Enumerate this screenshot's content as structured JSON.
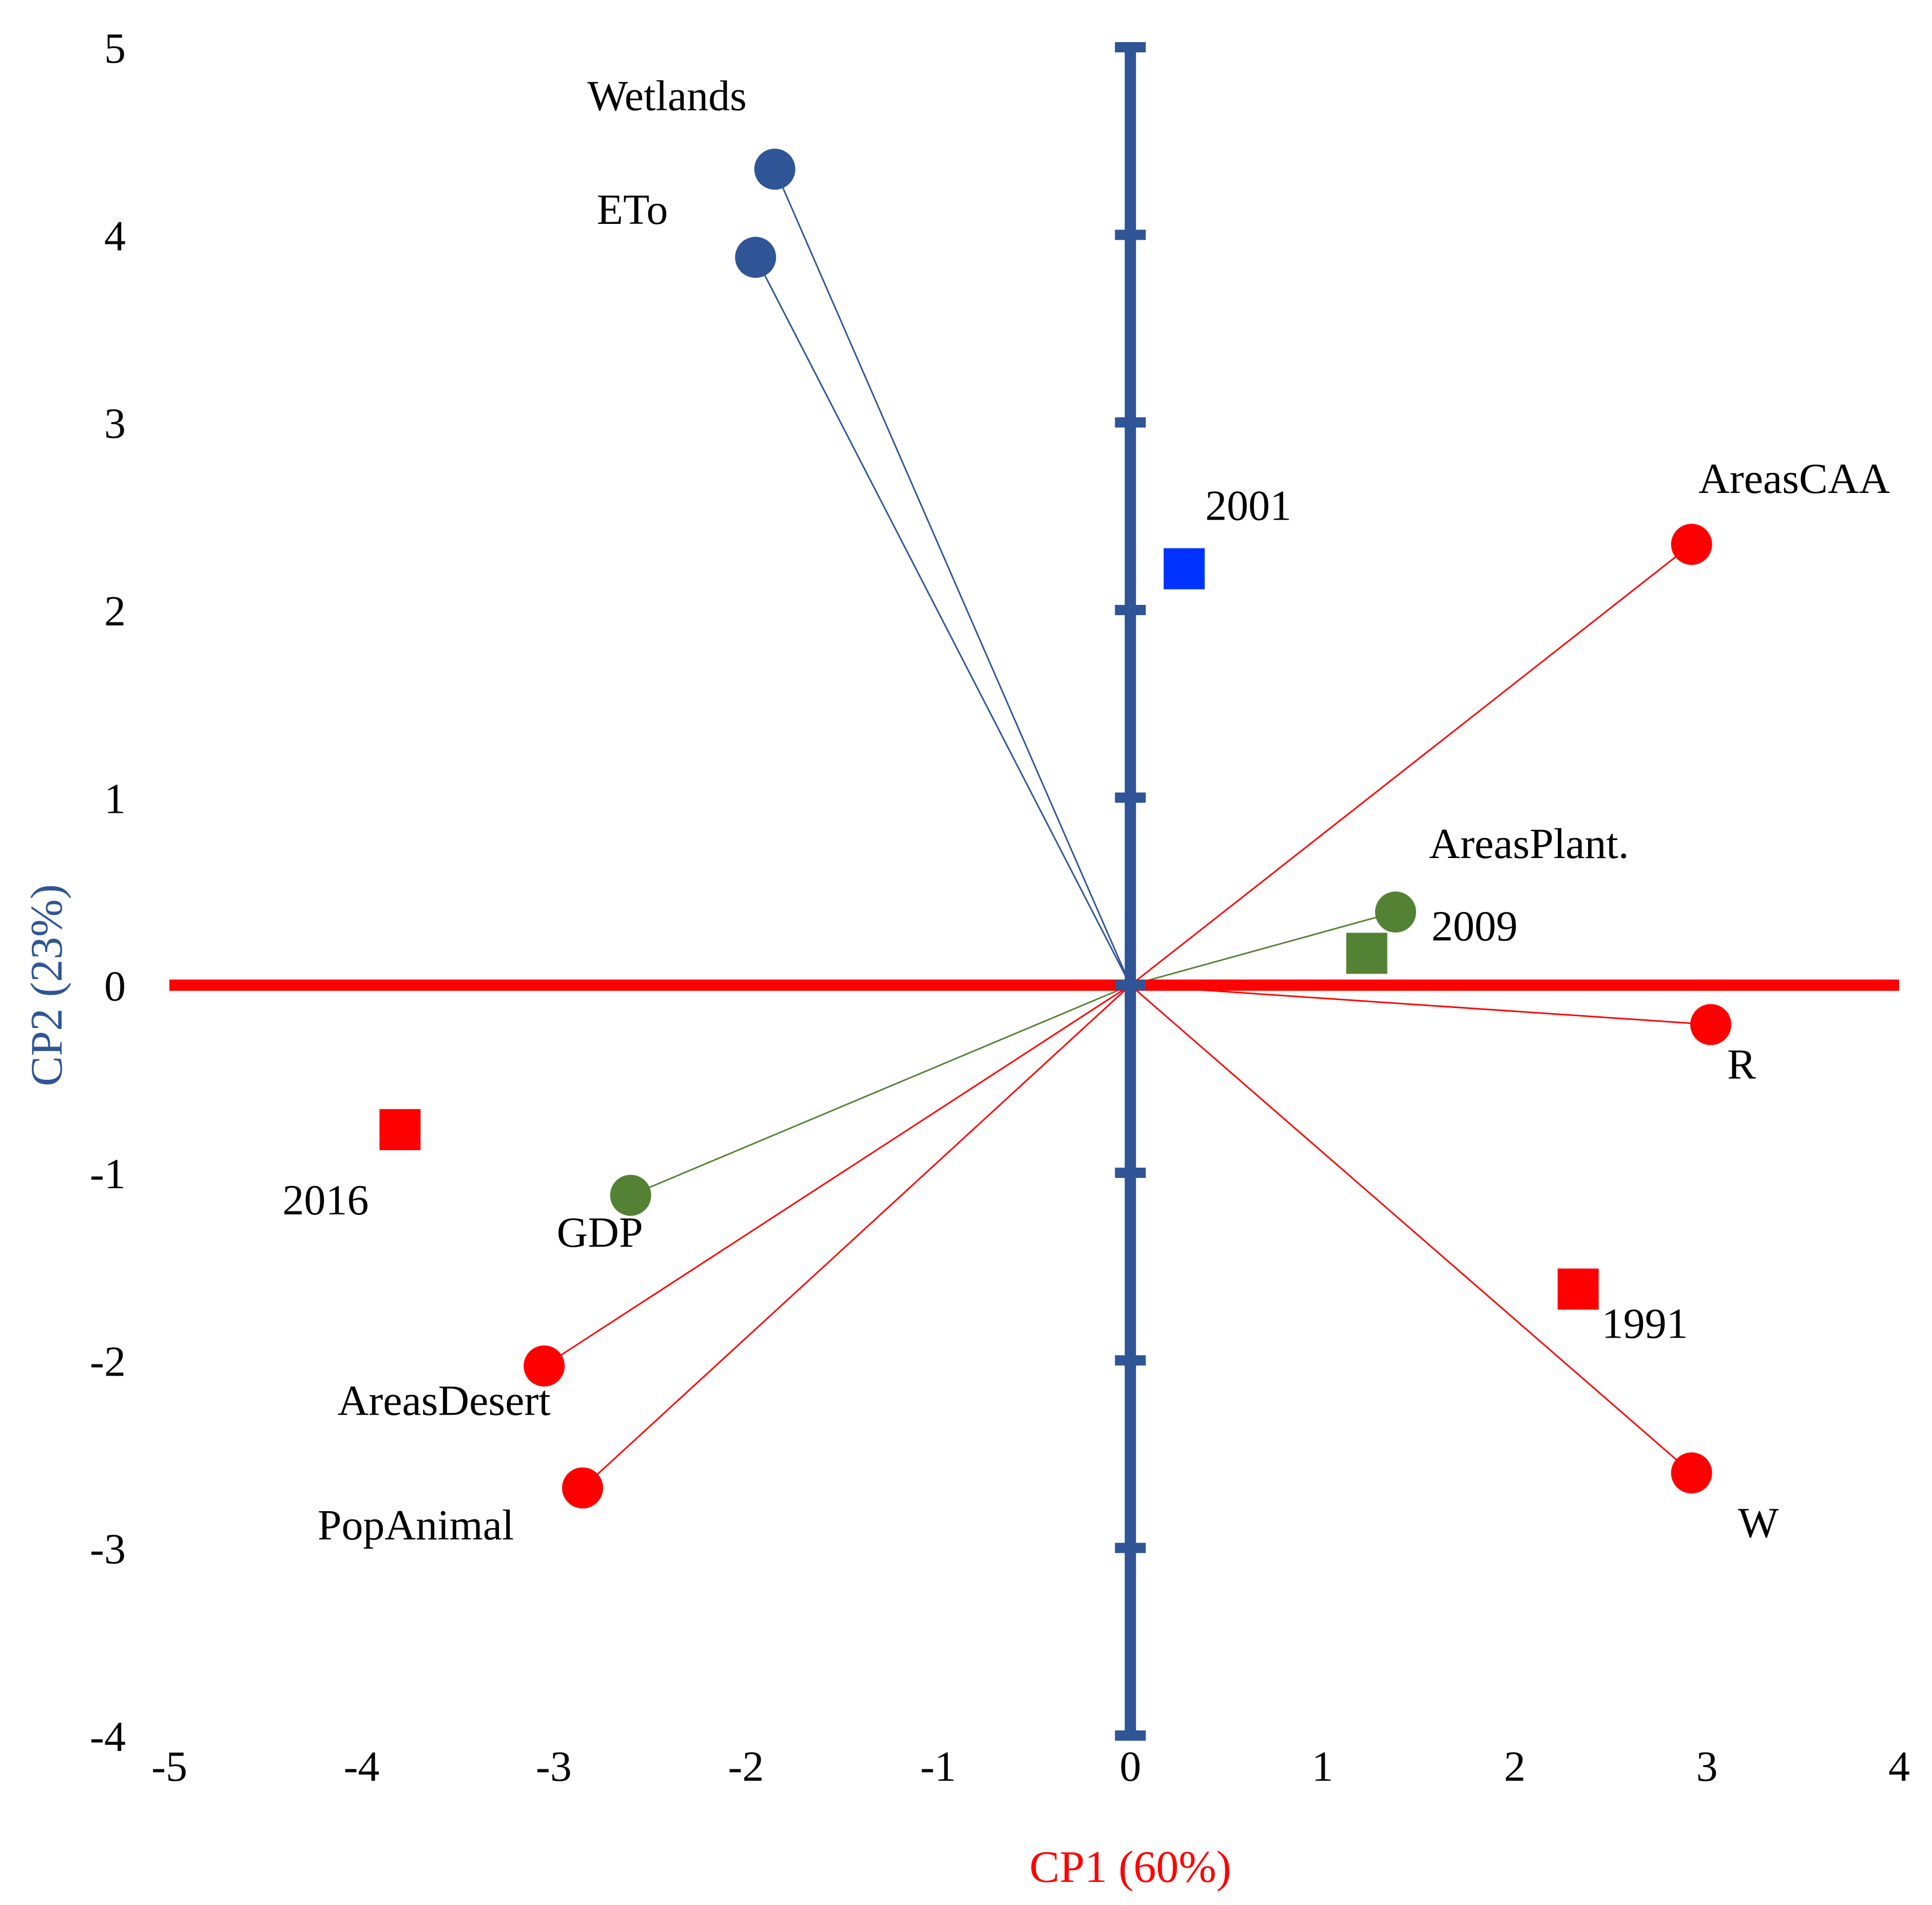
{
  "chart_data": {
    "type": "scatter",
    "title": "",
    "xlabel": "CP1 (60%)",
    "ylabel": "CP2 (23%)",
    "xlim": [
      -5,
      4
    ],
    "ylim": [
      -4,
      5
    ],
    "x_ticks": [
      -5,
      -4,
      -3,
      -2,
      -1,
      0,
      1,
      2,
      3,
      4
    ],
    "y_ticks": [
      -4,
      -3,
      -2,
      -1,
      0,
      1,
      2,
      3,
      4,
      5
    ],
    "colors": {
      "cp1_axis": "#ff0000",
      "cp2_axis": "#2f5597",
      "blue_group": "#2f5597",
      "red_group": "#ff0000",
      "green_group": "#548235",
      "year_2001": "#0033ff"
    },
    "variables": [
      {
        "label": "Wetlands",
        "x": -1.85,
        "y": 4.35,
        "group": "blue_group"
      },
      {
        "label": "ETo",
        "x": -1.95,
        "y": 3.88,
        "group": "blue_group"
      },
      {
        "label": "AreasCAA",
        "x": 2.92,
        "y": 2.35,
        "group": "red_group"
      },
      {
        "label": "AreasPlant.",
        "x": 1.38,
        "y": 0.39,
        "group": "green_group"
      },
      {
        "label": "R",
        "x": 3.02,
        "y": -0.21,
        "group": "red_group"
      },
      {
        "label": "W",
        "x": 2.92,
        "y": -2.6,
        "group": "red_group"
      },
      {
        "label": "GDP",
        "x": -2.6,
        "y": -1.12,
        "group": "green_group"
      },
      {
        "label": "AreasDesert",
        "x": -3.05,
        "y": -2.03,
        "group": "red_group"
      },
      {
        "label": "PopAnimal",
        "x": -2.85,
        "y": -2.68,
        "group": "red_group"
      }
    ],
    "years": [
      {
        "label": "2001",
        "x": 0.28,
        "y": 2.22,
        "group": "year_2001"
      },
      {
        "label": "2009",
        "x": 1.23,
        "y": 0.17,
        "group": "green_group"
      },
      {
        "label": "2016",
        "x": -3.8,
        "y": -0.77,
        "group": "red_group"
      },
      {
        "label": "1991",
        "x": 2.33,
        "y": -1.62,
        "group": "red_group"
      }
    ]
  }
}
